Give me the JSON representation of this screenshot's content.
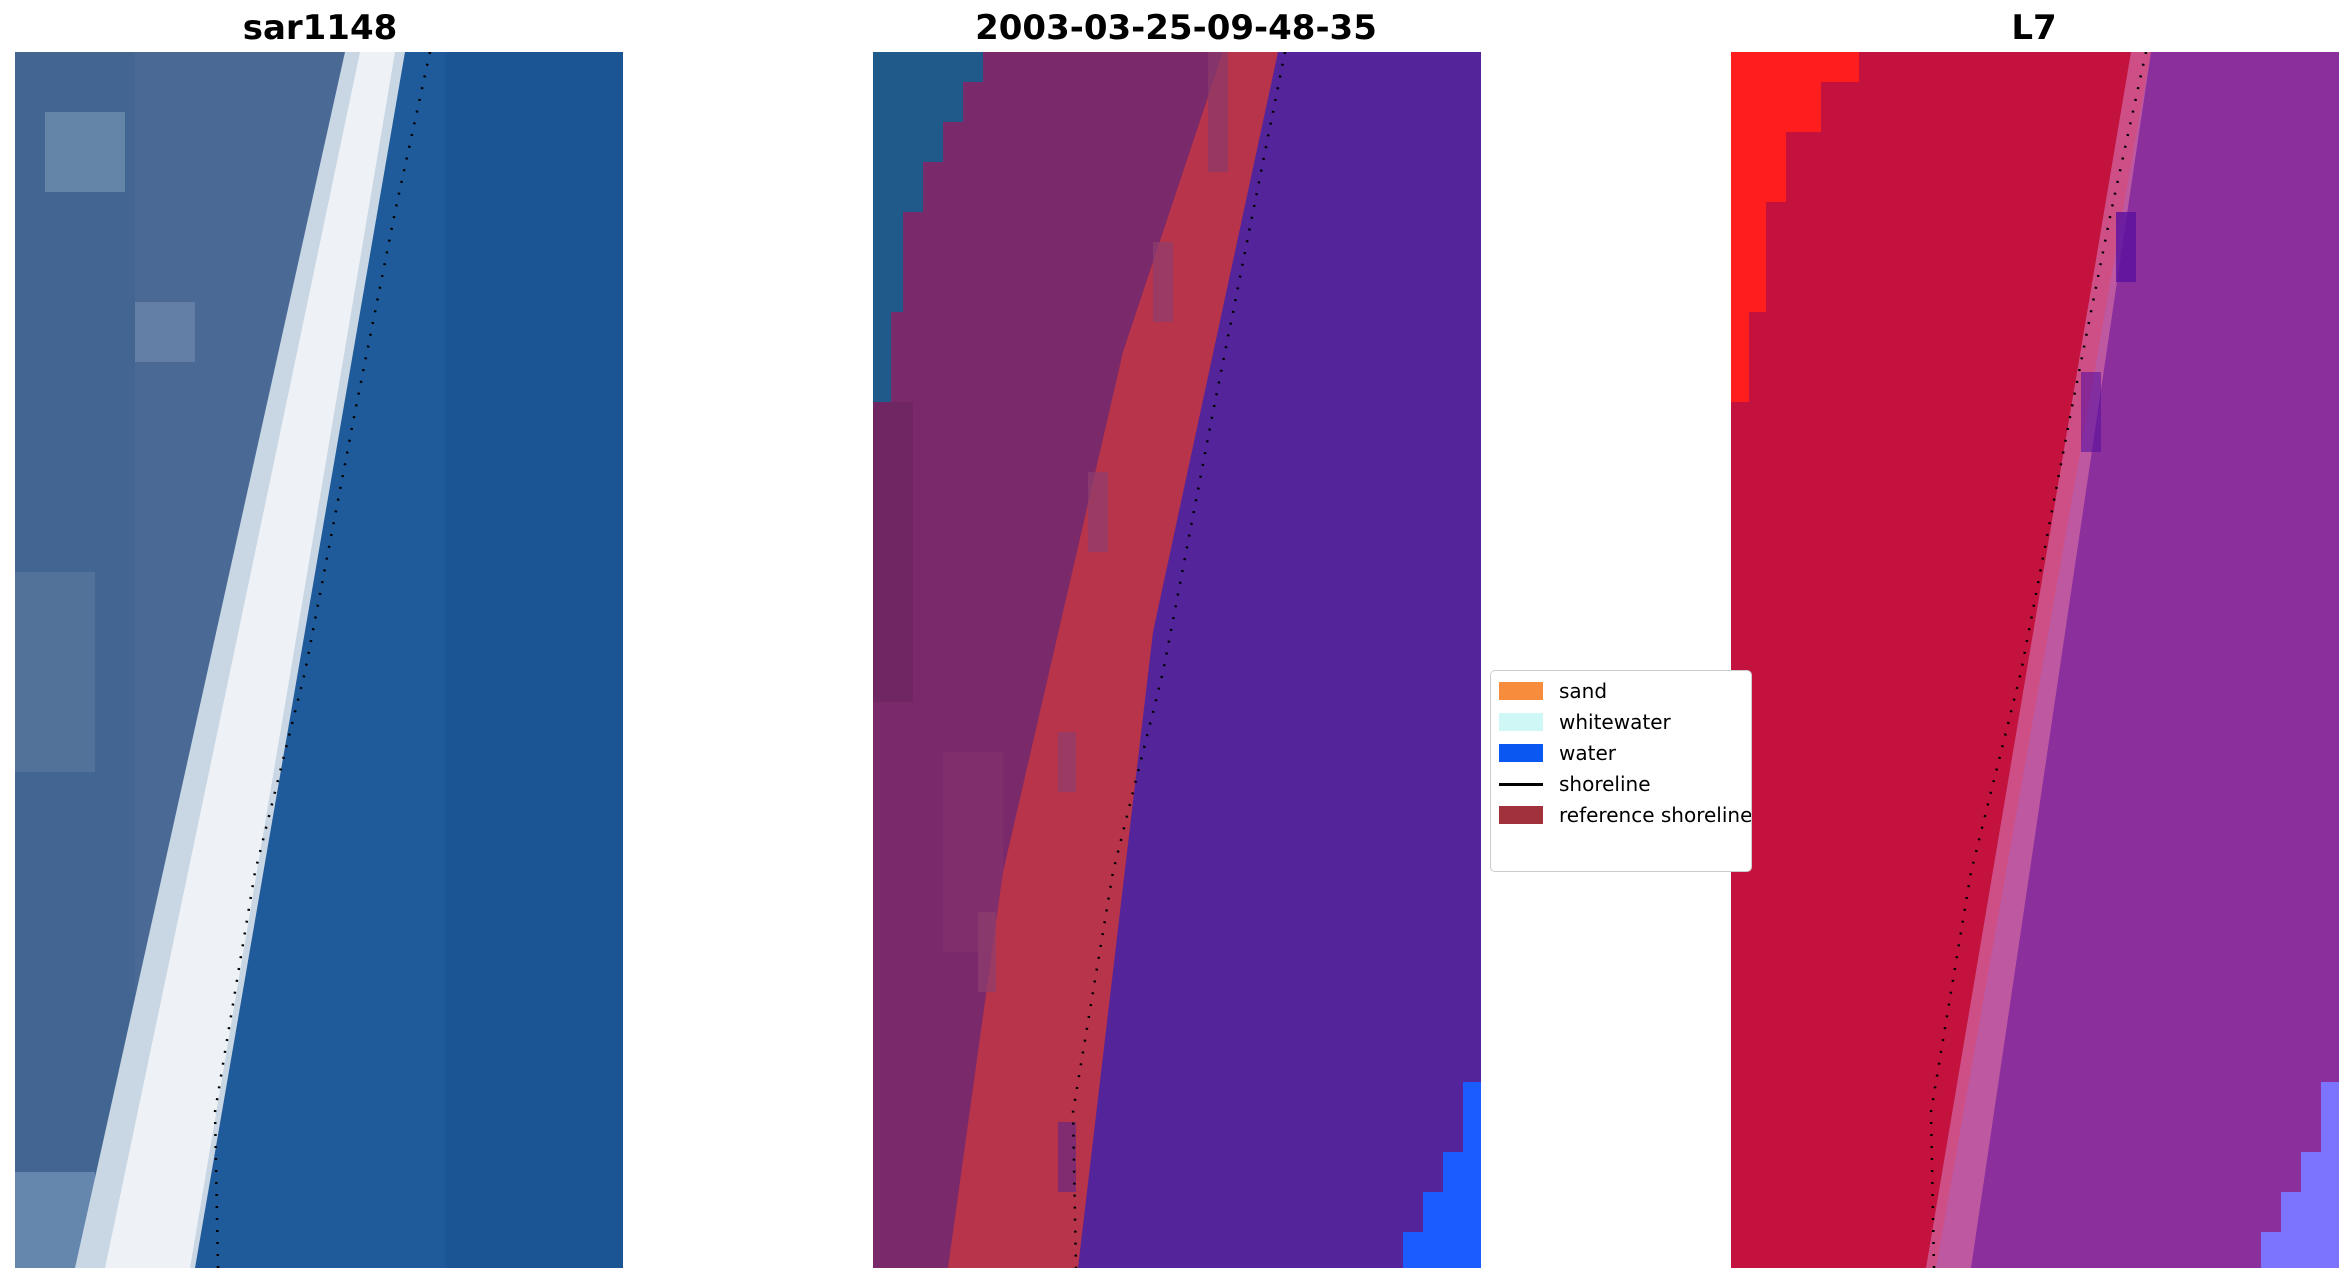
{
  "panels": [
    {
      "title": "sar1148"
    },
    {
      "title": "2003-03-25-09-48-35"
    },
    {
      "title": "L7"
    }
  ],
  "legend": {
    "items": [
      {
        "label": "sand",
        "kind": "patch",
        "color": "#f78c3c"
      },
      {
        "label": "whitewater",
        "kind": "patch",
        "color": "#cff7f5"
      },
      {
        "label": "water",
        "kind": "patch",
        "color": "#0b57f2"
      },
      {
        "label": "shoreline",
        "kind": "line",
        "color": "#000000"
      },
      {
        "label": "reference shoreline",
        "kind": "patch",
        "color": "#a1313a"
      }
    ]
  },
  "colors": {
    "ocean": "#1f5a9a",
    "surf": "#e8eef3",
    "land_rgb": "#4a6a95",
    "classified_water": "#53249a",
    "classified_land": "#7a2a6a",
    "classified_sand": "#b8344a",
    "nir_land": "#c4123e",
    "nir_water": "#8a2f9c",
    "bright_red": "#ff1e1e",
    "bright_blue": "#1a5cff",
    "lavender": "#7c74ff"
  }
}
